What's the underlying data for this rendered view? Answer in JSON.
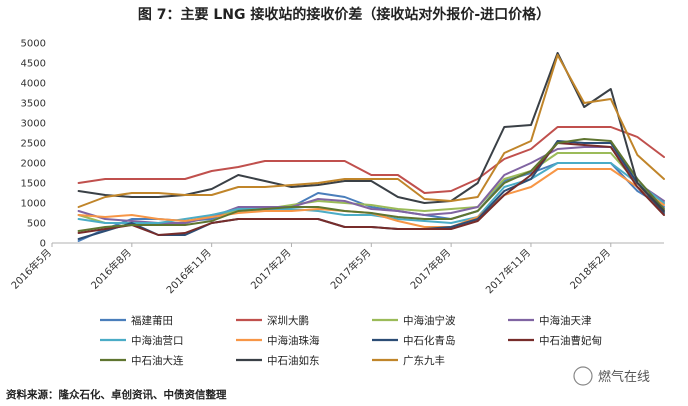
{
  "chart_data": {
    "type": "line",
    "title": "图 7：主要 LNG 接收站的接收价差（接收站对外报价-进口价格）",
    "xlabel": "",
    "ylabel": "",
    "ylim": [
      0,
      5000
    ],
    "yticks": [
      "0",
      "500",
      "1000",
      "1500",
      "2000",
      "2500",
      "3000",
      "3500",
      "4000",
      "4500",
      "5000"
    ],
    "xticks": [
      "2016年5月",
      "2016年8月",
      "2016年11月",
      "2017年2月",
      "2017年5月",
      "2017年8月",
      "2017年11月",
      "2018年2月"
    ],
    "grid": false,
    "legend_position": "bottom",
    "x": [
      "2016-06",
      "2016-07",
      "2016-08",
      "2016-09",
      "2016-10",
      "2016-11",
      "2016-12",
      "2017-01",
      "2017-02",
      "2017-03",
      "2017-04",
      "2017-05",
      "2017-06",
      "2017-07",
      "2017-08",
      "2017-09",
      "2017-10",
      "2017-11",
      "2017-12",
      "2018-01",
      "2018-02",
      "2018-03",
      "2018-04"
    ],
    "series": [
      {
        "name": "福建莆田",
        "color": "#4a7ebb",
        "values": [
          50,
          350,
          600,
          600,
          550,
          600,
          850,
          850,
          900,
          1250,
          1150,
          900,
          800,
          700,
          600,
          800,
          1550,
          1750,
          2000,
          2000,
          2000,
          1300,
          900
        ]
      },
      {
        "name": "深圳大鹏",
        "color": "#c0504d",
        "values": [
          1500,
          1600,
          1600,
          1600,
          1600,
          1800,
          1900,
          2050,
          2050,
          2050,
          2050,
          1700,
          1700,
          1250,
          1300,
          1600,
          2100,
          2350,
          2900,
          2900,
          2900,
          2650,
          2150
        ]
      },
      {
        "name": "中海油宁波",
        "color": "#9bbb59",
        "values": [
          700,
          500,
          500,
          500,
          500,
          700,
          800,
          850,
          950,
          1050,
          1000,
          950,
          850,
          800,
          850,
          900,
          1600,
          1800,
          2250,
          2250,
          2250,
          1500,
          1000
        ]
      },
      {
        "name": "中海油天津",
        "color": "#8064a2",
        "values": [
          800,
          600,
          550,
          500,
          500,
          650,
          900,
          900,
          900,
          1100,
          1050,
          850,
          800,
          700,
          750,
          900,
          1700,
          2000,
          2350,
          2400,
          2400,
          1500,
          1050
        ]
      },
      {
        "name": "中海油营口",
        "color": "#4bacc6",
        "values": [
          600,
          500,
          500,
          500,
          600,
          700,
          850,
          850,
          850,
          800,
          700,
          700,
          600,
          550,
          500,
          650,
          1400,
          1600,
          2000,
          2000,
          2000,
          1500,
          1000
        ]
      },
      {
        "name": "中海油珠海",
        "color": "#f79646",
        "values": [
          700,
          650,
          700,
          600,
          550,
          650,
          750,
          800,
          800,
          850,
          800,
          750,
          550,
          400,
          400,
          650,
          1200,
          1400,
          1850,
          1850,
          1850,
          1400,
          950
        ]
      },
      {
        "name": "中石化青岛",
        "color": "#2c4d75",
        "values": [
          100,
          300,
          500,
          200,
          200,
          500,
          600,
          600,
          600,
          600,
          400,
          400,
          350,
          350,
          400,
          600,
          1300,
          1600,
          2550,
          2500,
          2500,
          1500,
          750
        ]
      },
      {
        "name": "中石油曹妃甸",
        "color": "#772c2a",
        "values": [
          250,
          350,
          450,
          200,
          250,
          500,
          600,
          600,
          600,
          600,
          400,
          400,
          350,
          350,
          350,
          550,
          1200,
          1700,
          2500,
          2450,
          2400,
          1400,
          700
        ]
      },
      {
        "name": "中石油大连",
        "color": "#5f7530",
        "values": [
          300,
          400,
          450,
          450,
          450,
          550,
          800,
          850,
          900,
          900,
          800,
          750,
          650,
          600,
          600,
          800,
          1500,
          1800,
          2500,
          2600,
          2550,
          1600,
          850
        ]
      },
      {
        "name": "中石油如东",
        "color": "#3a4046",
        "values": [
          1300,
          1200,
          1150,
          1150,
          1200,
          1350,
          1700,
          1550,
          1400,
          1450,
          1550,
          1550,
          1150,
          1000,
          1050,
          1500,
          2900,
          2950,
          4750,
          3400,
          3850,
          1500,
          800
        ]
      },
      {
        "name": "广东九丰",
        "color": "#c0852a",
        "values": [
          900,
          1150,
          1250,
          1250,
          1200,
          1200,
          1400,
          1400,
          1450,
          1500,
          1600,
          1600,
          1600,
          1100,
          1050,
          1150,
          2250,
          2550,
          4700,
          3500,
          3600,
          2200,
          1600
        ]
      }
    ]
  },
  "source_text": "资料来源：隆众石化、卓创资讯、中债资信整理",
  "watermark_text": "燃气在线"
}
